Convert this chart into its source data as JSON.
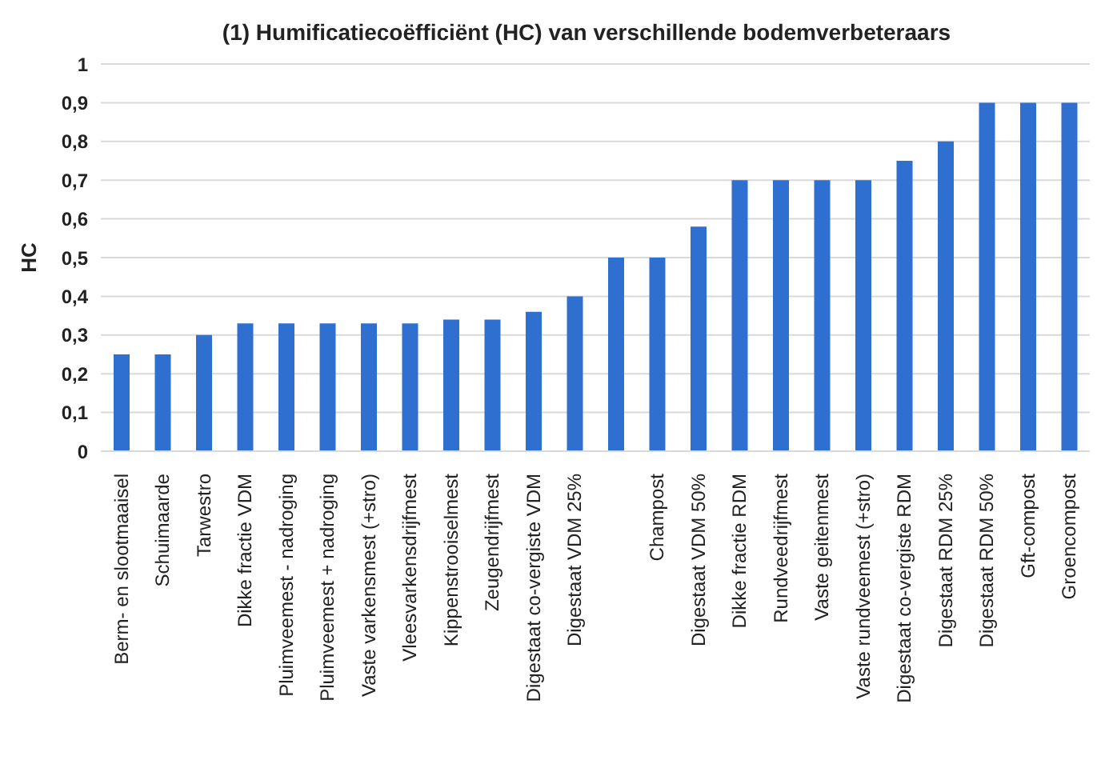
{
  "chart_data": {
    "type": "bar",
    "title": "(1) Humificatiecoëfficiënt (HC) van verschillende bodemverbeteraars",
    "ylabel": "HC",
    "categories": [
      "Berm- en slootmaaisel",
      "Schuimaarde",
      "Tarwestro",
      "Dikke fractie VDM",
      "Pluimveemest - nadroging",
      "Pluimveemest + nadroging",
      "Vaste varkensmest (+stro)",
      "Vleesvarkensdrijfmest",
      "Kippenstrooiselmest",
      "Zeugendrijfmest",
      "Digestaat co-vergiste VDM",
      "Digestaat VDM 25%",
      null,
      "Champost",
      "Digestaat VDM 50%",
      "Dikke fractie RDM",
      "Rundveedrijfmest",
      "Vaste geitenmest",
      "Vaste rundveemest (+stro)",
      "Digestaat co-vergiste RDM",
      "Digestaat RDM 25%",
      "Digestaat RDM 50%",
      "Gft-compost",
      "Groencompost"
    ],
    "values": [
      0.25,
      0.25,
      0.3,
      0.33,
      0.33,
      0.33,
      0.33,
      0.33,
      0.34,
      0.34,
      0.36,
      0.4,
      0.5,
      0.5,
      0.58,
      0.7,
      0.7,
      0.7,
      0.7,
      0.75,
      0.8,
      0.9,
      0.9,
      0.9
    ],
    "color": "#2e6fd0",
    "ylim": [
      0,
      1
    ],
    "yticks": [
      0,
      {
        "value": 0.1,
        "label": "0,1"
      },
      {
        "value": 0.2,
        "label": "0,2"
      },
      {
        "value": 0.3,
        "label": "0,3"
      },
      {
        "value": 0.4,
        "label": "0,4"
      },
      {
        "value": 0.5,
        "label": "0,5"
      },
      {
        "value": 0.6,
        "label": "0,6"
      },
      {
        "value": 0.7,
        "label": "0,7"
      },
      {
        "value": 0.8,
        "label": "0,8"
      },
      {
        "value": 0.9,
        "label": "0,9"
      },
      1
    ],
    "grid": "y"
  }
}
